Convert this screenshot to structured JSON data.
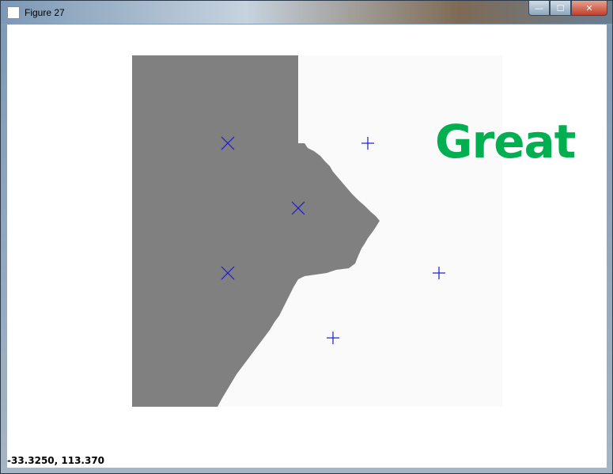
{
  "window": {
    "title": "Figure 27",
    "controls": {
      "minimize": "—",
      "maximize": "☐",
      "close": "✕"
    }
  },
  "figure": {
    "annotation": "Great",
    "annotation_color": "#00b050",
    "region_colors": {
      "negative": "#808080",
      "positive": "#fafafa"
    },
    "marker_color": "#1a1ad0"
  },
  "status": {
    "coordinates": "-33.3250,  113.370"
  },
  "chart_data": {
    "type": "scatter",
    "title": "",
    "xlabel": "",
    "ylabel": "",
    "decision_boundary": true,
    "series": [
      {
        "marker": "x",
        "points": [
          [
            287,
            180
          ],
          [
            376,
            262
          ],
          [
            287,
            344
          ]
        ]
      },
      {
        "marker": "+",
        "points": [
          [
            464,
            180
          ],
          [
            554,
            344
          ],
          [
            420,
            426
          ]
        ]
      }
    ]
  }
}
